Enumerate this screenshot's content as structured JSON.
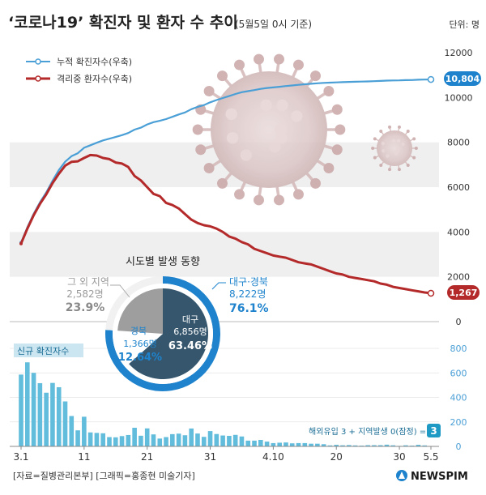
{
  "header": {
    "title": "‘코로나19’ 확진자 및 환자 수 추이",
    "date_note": "(5월5일 0시 기준)",
    "unit": "단위: 명"
  },
  "footer": {
    "source": "[자료=질병관리본부] [그래픽=홍종현 미술기자]",
    "brand": "NEWSPIM"
  },
  "colors": {
    "cumulative": "#4a9fd6",
    "isolated": "#b42a2a",
    "new_bar": "#62bcdc",
    "donut_outer": "#1e83cc",
    "donut_dark": "#35566d",
    "donut_gray": "#9e9e9e",
    "band": "#efefef"
  },
  "chart_data": [
    {
      "type": "line",
      "title": "",
      "xlabel": "",
      "ylabel": "",
      "ylim": [
        0,
        12000
      ],
      "y_ticks": [
        "0",
        "2000",
        "4000",
        "6000",
        "8000",
        "10000",
        "12000"
      ],
      "x_ticks": [
        "3.1",
        "11",
        "21",
        "31",
        "4.10",
        "20",
        "30",
        "5.5"
      ],
      "legend_position": "top-left",
      "series": [
        {
          "name": "누적 확진자수(우축)",
          "end_label": "10,804",
          "values": [
            3526,
            4212,
            4812,
            5328,
            5766,
            6284,
            6767,
            7134,
            7382,
            7513,
            7755,
            7869,
            7979,
            8086,
            8162,
            8236,
            8320,
            8413,
            8565,
            8652,
            8799,
            8897,
            8961,
            9037,
            9137,
            9241,
            9332,
            9478,
            9583,
            9661,
            9786,
            9887,
            9976,
            10062,
            10156,
            10237,
            10284,
            10331,
            10384,
            10423,
            10450,
            10480,
            10512,
            10537,
            10564,
            10591,
            10613,
            10635,
            10653,
            10661,
            10674,
            10683,
            10694,
            10702,
            10708,
            10718,
            10728,
            10738,
            10752,
            10761,
            10765,
            10774,
            10780,
            10793,
            10801,
            10804
          ]
        },
        {
          "name": "격리중 환자수(우축)",
          "end_label": "1,267",
          "values": [
            3480,
            4150,
            4750,
            5255,
            5678,
            6180,
            6600,
            6962,
            7128,
            7152,
            7300,
            7430,
            7410,
            7300,
            7250,
            7100,
            7050,
            6900,
            6500,
            6300,
            6000,
            5700,
            5600,
            5300,
            5200,
            5050,
            4800,
            4550,
            4400,
            4300,
            4250,
            4150,
            4000,
            3800,
            3700,
            3550,
            3450,
            3250,
            3150,
            3050,
            2950,
            2900,
            2850,
            2750,
            2650,
            2600,
            2550,
            2450,
            2350,
            2250,
            2150,
            2100,
            2000,
            1950,
            1900,
            1850,
            1800,
            1700,
            1650,
            1550,
            1500,
            1450,
            1400,
            1350,
            1300,
            1267
          ]
        }
      ]
    },
    {
      "type": "bar",
      "title": "신규 확진자수",
      "ylim": [
        0,
        800
      ],
      "y_ticks": [
        "0",
        "200",
        "400",
        "600",
        "800"
      ],
      "annotation": "해외유입 3 + 지역발생 0(잠정) = 3",
      "annotation_value": "3",
      "series": [
        {
          "name": "신규 확진자수",
          "values": [
            586,
            686,
            600,
            516,
            438,
            518,
            483,
            367,
            248,
            131,
            242,
            114,
            110,
            107,
            76,
            74,
            84,
            93,
            152,
            87,
            147,
            98,
            64,
            76,
            100,
            104,
            91,
            146,
            105,
            78,
            125,
            101,
            89,
            86,
            94,
            81,
            47,
            47,
            53,
            39,
            27,
            30,
            32,
            25,
            27,
            27,
            22,
            22,
            18,
            8,
            13,
            9,
            11,
            8,
            6,
            10,
            10,
            10,
            14,
            9,
            4,
            9,
            6,
            13,
            8,
            3
          ]
        }
      ]
    },
    {
      "type": "pie",
      "title": "시도별 발생 동향",
      "slices": [
        {
          "name": "대구",
          "count": "6,856명",
          "pct": "63.46%",
          "value": 63.46
        },
        {
          "name": "경북",
          "count": "1,366명",
          "pct": "12.64%",
          "value": 12.64
        },
        {
          "name": "그 외 지역",
          "count": "2,582명",
          "pct": "23.9%",
          "value": 23.9
        }
      ],
      "outer_ring": {
        "name": "대구·경북",
        "count": "8,222명",
        "pct": "76.1%",
        "value": 76.1
      }
    }
  ]
}
